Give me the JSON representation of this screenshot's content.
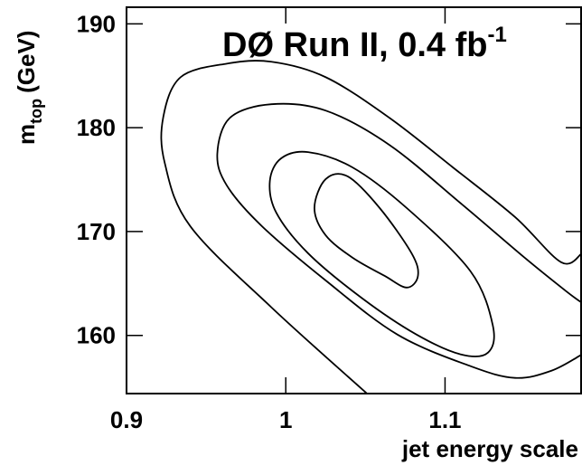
{
  "chart_data": {
    "type": "contour",
    "title": "DØ Run II, 0.4 fb",
    "title_superscript": "-1",
    "xlabel": "jet energy scale",
    "ylabel": "m",
    "ylabel_subscript": "top",
    "ylabel_unit": "(GeV)",
    "xlim": [
      0.9,
      1.186
    ],
    "ylim": [
      154.4,
      191.6
    ],
    "xticks": [
      0.9,
      1,
      1.1
    ],
    "yticks": [
      160,
      170,
      180,
      190
    ],
    "color": "#000000",
    "series": [
      {
        "closed": true,
        "x": [
          1.018,
          1.025,
          1.039,
          1.059,
          1.079,
          1.083,
          1.076,
          1.062,
          1.042,
          1.025
        ],
        "y": [
          172.26,
          175.04,
          175.3,
          172.26,
          167.91,
          165.74,
          164.61,
          165.74,
          167.48,
          169.65
        ]
      },
      {
        "closed": true,
        "x": [
          0.99,
          0.997,
          1.014,
          1.042,
          1.076,
          1.116,
          1.13,
          1.127,
          1.11,
          1.082,
          1.048,
          1.014,
          0.994
        ],
        "y": [
          174.87,
          177.04,
          177.65,
          176.17,
          172.26,
          166.17,
          160.96,
          158.35,
          158.17,
          160.09,
          163.57,
          167.91,
          171.83
        ]
      },
      {
        "closed": false,
        "x": [
          1.186,
          1.167,
          1.144,
          1.116,
          1.07,
          1.025,
          0.985,
          0.963,
          0.957,
          0.965,
          0.991,
          1.025,
          1.065,
          1.11,
          1.15,
          1.176,
          1.186
        ],
        "y": [
          158.17,
          156.61,
          155.91,
          157.04,
          160.09,
          165.3,
          170.52,
          174.43,
          177.48,
          180.96,
          182.26,
          181.65,
          178.35,
          172.7,
          167.48,
          164.26,
          163.13
        ]
      },
      {
        "closed": false,
        "x": [
          1.051,
          0.991,
          0.94,
          0.924,
          0.923,
          0.934,
          0.963,
          0.991,
          1.025,
          1.065,
          1.105,
          1.144,
          1.173,
          1.186
        ],
        "y": [
          154.4,
          162.7,
          170.52,
          176.61,
          180.96,
          184.87,
          186.17,
          186.35,
          184.87,
          180.96,
          176.17,
          171.39,
          167.04,
          167.91
        ]
      }
    ]
  }
}
